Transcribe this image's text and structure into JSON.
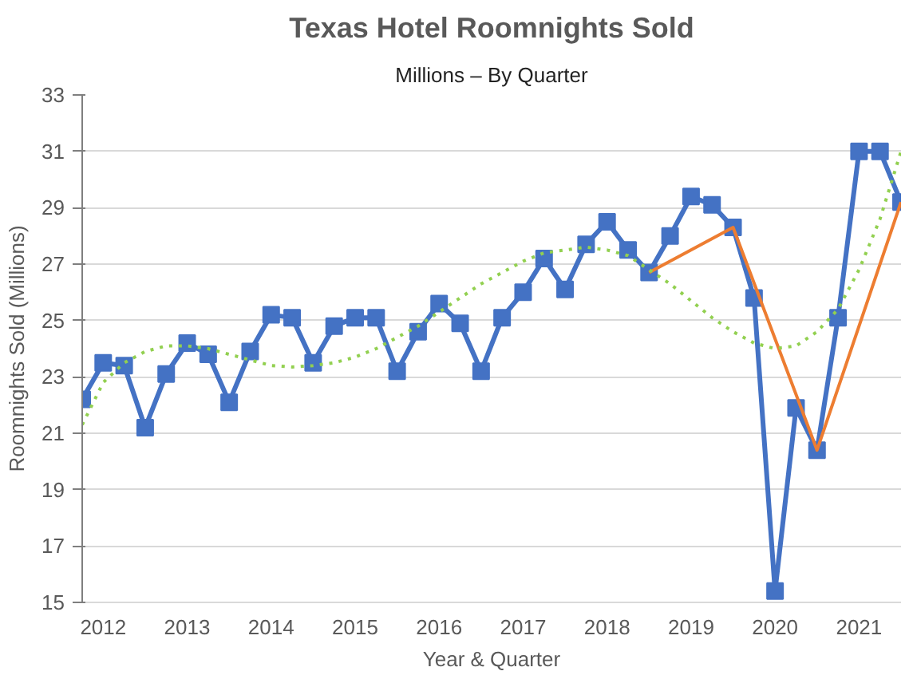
{
  "chart_data": {
    "type": "line",
    "title": "Texas Hotel Roomnights Sold",
    "subtitle": "Millions – By Quarter",
    "xlabel": "Year & Quarter",
    "ylabel": "Roomnights Sold (Millions)",
    "x": [
      2012.0,
      2012.25,
      2012.5,
      2012.75,
      2013.0,
      2013.25,
      2013.5,
      2013.75,
      2014.0,
      2014.25,
      2014.5,
      2014.75,
      2015.0,
      2015.25,
      2015.5,
      2015.75,
      2016.0,
      2016.25,
      2016.5,
      2016.75,
      2017.0,
      2017.25,
      2017.5,
      2017.75,
      2018.0,
      2018.25,
      2018.5,
      2018.75,
      2019.0,
      2019.25,
      2019.5,
      2019.75,
      2020.0,
      2020.25,
      2020.5,
      2020.75,
      2021.0,
      2021.25,
      2021.5,
      2021.75
    ],
    "series": [
      {
        "color": "#4472c4",
        "marker": "square",
        "line_style": "solid",
        "values": [
          22.2,
          23.5,
          23.4,
          21.2,
          23.1,
          24.2,
          23.8,
          22.1,
          23.9,
          25.2,
          25.1,
          23.5,
          24.8,
          25.1,
          25.1,
          23.2,
          24.6,
          25.6,
          24.9,
          23.2,
          25.1,
          26.0,
          27.2,
          26.1,
          27.7,
          28.5,
          27.5,
          26.7,
          28.0,
          29.4,
          29.1,
          28.3,
          25.8,
          15.4,
          21.9,
          20.4,
          25.1,
          31.0,
          31.0,
          29.2
        ]
      },
      {
        "color": "#ed7d31",
        "marker": "none",
        "line_style": "solid",
        "x": [
          2018.75,
          2019.75,
          2020.75,
          2021.75
        ],
        "values": [
          26.7,
          28.3,
          20.4,
          29.2
        ]
      },
      {
        "color": "#92d050",
        "marker": "none",
        "line_style": "dotted",
        "values": [
          21.3,
          22.8,
          23.5,
          23.9,
          24.1,
          24.1,
          24.0,
          23.8,
          23.6,
          23.4,
          23.35,
          23.4,
          23.5,
          23.7,
          24.0,
          24.4,
          24.8,
          25.3,
          25.8,
          26.3,
          26.7,
          27.1,
          27.4,
          27.5,
          27.6,
          27.5,
          27.3,
          26.8,
          26.3,
          25.7,
          25.1,
          24.6,
          24.2,
          24.0,
          24.1,
          24.6,
          25.4,
          26.8,
          28.6,
          31.0
        ]
      }
    ],
    "xlim": [
      2012.0,
      2021.75
    ],
    "xticks": [
      {
        "value": 2012.25,
        "label": "2012"
      },
      {
        "value": 2013.25,
        "label": "2013"
      },
      {
        "value": 2014.25,
        "label": "2014"
      },
      {
        "value": 2015.25,
        "label": "2015"
      },
      {
        "value": 2016.25,
        "label": "2016"
      },
      {
        "value": 2017.25,
        "label": "2017"
      },
      {
        "value": 2018.25,
        "label": "2018"
      },
      {
        "value": 2019.25,
        "label": "2019"
      },
      {
        "value": 2020.25,
        "label": "2020"
      },
      {
        "value": 2021.25,
        "label": "2021"
      }
    ],
    "ylim": [
      15,
      33
    ],
    "yticks": [
      15,
      17,
      19,
      21,
      23,
      25,
      27,
      29,
      31,
      33
    ],
    "grid": "y"
  }
}
